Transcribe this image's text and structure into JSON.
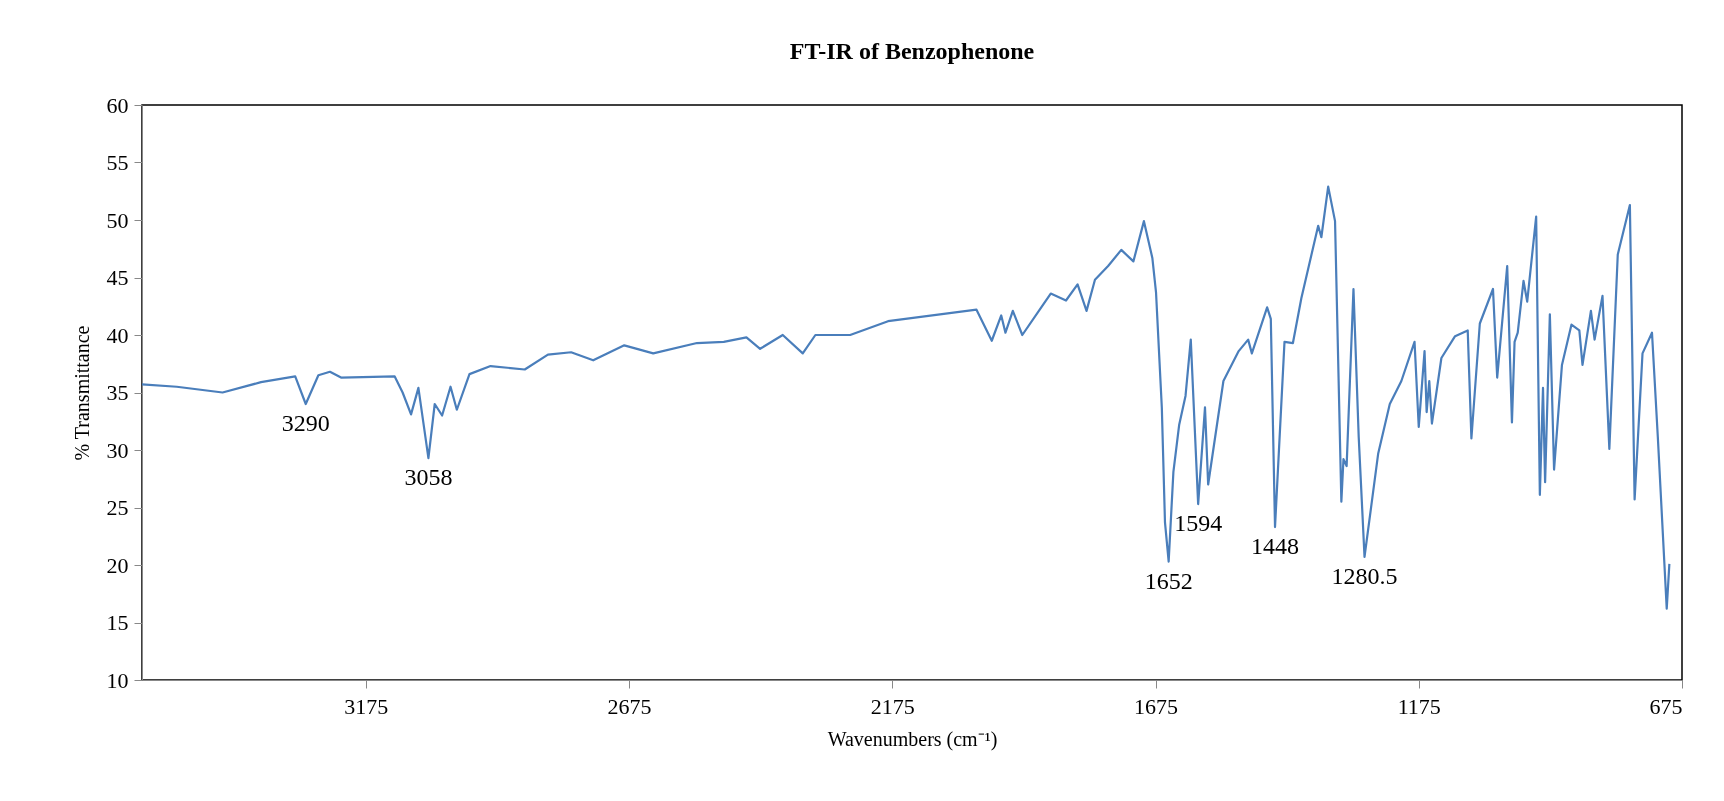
{
  "chart_data": {
    "type": "line",
    "title": "FT-IR of Benzophenone",
    "xlabel": "Wavenumbers (cm⁻¹)",
    "ylabel": "% Transmittance",
    "xlim": [
      3600,
      675
    ],
    "xticks": [
      3175,
      2675,
      2175,
      1675,
      1175,
      675
    ],
    "ylim": [
      10,
      60
    ],
    "yticks": [
      10,
      15,
      20,
      25,
      30,
      35,
      40,
      45,
      50,
      55,
      60
    ],
    "x": [
      3600,
      3534,
      3447,
      3374,
      3309,
      3289,
      3265,
      3243,
      3222,
      3120,
      3105,
      3089,
      3075,
      3056,
      3044,
      3030,
      3014,
      3002,
      2978,
      2938,
      2873,
      2829,
      2785,
      2743,
      2684,
      2629,
      2546,
      2495,
      2452,
      2426,
      2383,
      2345,
      2321,
      2255,
      2183,
      2015,
      1986,
      1968,
      1960,
      1946,
      1928,
      1892,
      1874,
      1845,
      1823,
      1806,
      1790,
      1765,
      1740,
      1717,
      1697,
      1681,
      1674,
      1663,
      1657,
      1650,
      1641,
      1630,
      1618,
      1608,
      1594,
      1581,
      1575,
      1546,
      1517,
      1499,
      1492,
      1463,
      1456,
      1448,
      1430,
      1414,
      1398,
      1366,
      1360,
      1347,
      1334,
      1322,
      1318,
      1312,
      1299,
      1289,
      1278,
      1252,
      1230,
      1208,
      1183,
      1175,
      1164,
      1160,
      1155,
      1150,
      1132,
      1106,
      1082,
      1075,
      1059,
      1034,
      1026,
      1007,
      998,
      993,
      987,
      976,
      969,
      952,
      945,
      939,
      935,
      926,
      918,
      903,
      885,
      870,
      864,
      848,
      841,
      826,
      813,
      797,
      774,
      765,
      750,
      732,
      721,
      704,
      699
    ],
    "series": [
      {
        "color": "#4a7ebb",
        "values": [
          35.7,
          35.5,
          35.0,
          35.9,
          36.4,
          34.0,
          36.5,
          36.8,
          36.3,
          36.4,
          35.0,
          33.1,
          35.4,
          29.3,
          34.0,
          33.0,
          35.5,
          33.5,
          36.6,
          37.3,
          37.0,
          38.3,
          38.5,
          37.8,
          39.1,
          38.4,
          39.3,
          39.4,
          39.8,
          38.8,
          40.0,
          38.4,
          40.0,
          40.0,
          41.2,
          42.2,
          39.5,
          41.7,
          40.2,
          42.1,
          40.0,
          42.4,
          43.6,
          43.0,
          44.4,
          42.1,
          44.8,
          46.0,
          47.4,
          46.4,
          49.9,
          46.7,
          43.7,
          33.7,
          23.7,
          20.3,
          28.1,
          32.2,
          34.7,
          39.6,
          25.3,
          33.7,
          27.0,
          36.0,
          38.6,
          39.6,
          38.4,
          42.4,
          41.4,
          23.3,
          39.4,
          39.3,
          43.2,
          49.5,
          48.5,
          52.9,
          49.9,
          25.5,
          29.2,
          28.6,
          44.0,
          31.1,
          20.7,
          29.7,
          34.0,
          36.0,
          39.4,
          32.0,
          38.6,
          33.3,
          36.0,
          32.3,
          38.0,
          39.9,
          40.4,
          31.0,
          41.0,
          44.0,
          36.3,
          46.0,
          32.4,
          39.4,
          40.2,
          44.7,
          42.9,
          50.3,
          26.1,
          35.4,
          27.2,
          41.8,
          28.3,
          37.4,
          40.9,
          40.4,
          37.4,
          42.1,
          39.6,
          43.4,
          30.1,
          47.0,
          51.3,
          25.7,
          38.4,
          40.2,
          31.2,
          16.2,
          20.1
        ]
      }
    ],
    "annotations": [
      {
        "text": "3290",
        "x": 3289,
        "y": 34.0
      },
      {
        "text": "3058",
        "x": 3056,
        "y": 29.3
      },
      {
        "text": "1652",
        "x": 1650,
        "y": 20.3
      },
      {
        "text": "1594",
        "x": 1594,
        "y": 25.3
      },
      {
        "text": "1448",
        "x": 1448,
        "y": 23.3
      },
      {
        "text": "1280.5",
        "x": 1278,
        "y": 20.7
      }
    ]
  }
}
